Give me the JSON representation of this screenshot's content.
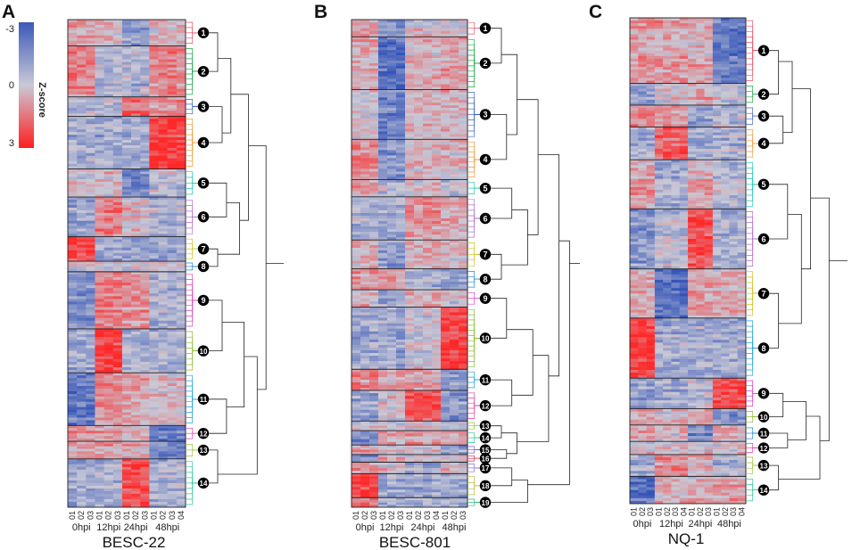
{
  "chart_data": {
    "type": "heatmap",
    "colorbar": {
      "label": "Z-score",
      "ticks": [
        "-3",
        "0",
        "3"
      ],
      "colors": [
        "#3a59b8",
        "#c9c9d6",
        "#ff1e1e"
      ]
    },
    "panels": [
      {
        "letter": "A",
        "title": "BESC-22",
        "timepoints": [
          {
            "label": "0hpi",
            "replicates": [
              "01",
              "02",
              "03"
            ]
          },
          {
            "label": "12hpi",
            "replicates": [
              "01",
              "02",
              "03"
            ]
          },
          {
            "label": "24hpi",
            "replicates": [
              "01",
              "02",
              "03"
            ]
          },
          {
            "label": "48hpi",
            "replicates": [
              "01",
              "02",
              "03",
              "04"
            ]
          }
        ],
        "clusters": [
          {
            "id": "1",
            "size": 30,
            "color": "#e8566a",
            "pattern": [
              0.3,
              0.1,
              -0.4,
              0.1
            ]
          },
          {
            "id": "2",
            "size": 58,
            "color": "#21a84a",
            "pattern": [
              0.4,
              -0.2,
              -0.2,
              0.4
            ]
          },
          {
            "id": "3",
            "size": 22,
            "color": "#3d63c9",
            "pattern": [
              -0.2,
              -0.1,
              0.6,
              0.4
            ]
          },
          {
            "id": "4",
            "size": 60,
            "color": "#f39a35",
            "pattern": [
              -0.3,
              -0.3,
              -0.3,
              0.9
            ]
          },
          {
            "id": "5",
            "size": 32,
            "color": "#1cc7b4",
            "pattern": [
              0.1,
              0.1,
              -0.6,
              -0.1
            ]
          },
          {
            "id": "6",
            "size": 45,
            "color": "#b06fd0",
            "pattern": [
              -0.3,
              0.5,
              0.1,
              -0.2
            ]
          },
          {
            "id": "7",
            "size": 28,
            "color": "#c9c21e",
            "pattern": [
              0.9,
              -0.3,
              -0.3,
              -0.3
            ]
          },
          {
            "id": "8",
            "size": 12,
            "color": "#1e8bd0",
            "pattern": [
              0.1,
              0.1,
              0.1,
              0.1
            ]
          },
          {
            "id": "9",
            "size": 65,
            "color": "#e040c0",
            "pattern": [
              -0.5,
              0.5,
              0.4,
              -0.2
            ]
          },
          {
            "id": "10",
            "size": 50,
            "color": "#8bbb35",
            "pattern": [
              -0.3,
              0.9,
              -0.2,
              -0.2
            ]
          },
          {
            "id": "11",
            "size": 60,
            "color": "#1ea5d6",
            "pattern": [
              -0.7,
              0.4,
              0.3,
              0.1
            ]
          },
          {
            "id": "12",
            "size": 18,
            "color": "#e23fa6",
            "pattern": [
              0.4,
              0.3,
              0.2,
              -0.6
            ]
          },
          {
            "id": "13",
            "size": 20,
            "color": "#9bc53a",
            "pattern": [
              0.3,
              0.3,
              0.2,
              -0.6
            ]
          },
          {
            "id": "14",
            "size": 55,
            "color": "#2ec99a",
            "pattern": [
              -0.3,
              -0.2,
              0.8,
              -0.2
            ]
          }
        ]
      },
      {
        "letter": "B",
        "title": "BESC-801",
        "timepoints": [
          {
            "label": "0hpi",
            "replicates": [
              "01",
              "02",
              "03"
            ]
          },
          {
            "label": "12hpi",
            "replicates": [
              "01",
              "02",
              "03"
            ]
          },
          {
            "label": "24hpi",
            "replicates": [
              "01",
              "02",
              "03",
              "04"
            ]
          },
          {
            "label": "48hpi",
            "replicates": [
              "01",
              "02",
              "03"
            ]
          }
        ],
        "clusters": [
          {
            "id": "1",
            "size": 18,
            "color": "#e8566a",
            "pattern": [
              0.3,
              -0.4,
              0.1,
              0.1
            ]
          },
          {
            "id": "2",
            "size": 55,
            "color": "#21a84a",
            "pattern": [
              0.2,
              -0.8,
              0.2,
              0.3
            ]
          },
          {
            "id": "3",
            "size": 52,
            "color": "#3d63c9",
            "pattern": [
              0.1,
              -0.6,
              0.2,
              0.2
            ]
          },
          {
            "id": "4",
            "size": 42,
            "color": "#f39a35",
            "pattern": [
              0.4,
              -0.5,
              0.1,
              0.1
            ]
          },
          {
            "id": "5",
            "size": 18,
            "color": "#1cc7b4",
            "pattern": [
              0.2,
              -0.2,
              0.1,
              -0.1
            ]
          },
          {
            "id": "6",
            "size": 45,
            "color": "#b06fd0",
            "pattern": [
              -0.2,
              -0.3,
              0.4,
              0.2
            ]
          },
          {
            "id": "7",
            "size": 30,
            "color": "#c9c21e",
            "pattern": [
              0.2,
              -0.4,
              0.2,
              0.1
            ]
          },
          {
            "id": "8",
            "size": 22,
            "color": "#1e8bd0",
            "pattern": [
              0.4,
              0.3,
              -0.2,
              -0.3
            ]
          },
          {
            "id": "9",
            "size": 18,
            "color": "#e040c0",
            "pattern": [
              0.2,
              -0.3,
              0.2,
              0.1
            ]
          },
          {
            "id": "10",
            "size": 65,
            "color": "#8bbb35",
            "pattern": [
              -0.3,
              -0.3,
              0.0,
              0.9
            ]
          },
          {
            "id": "11",
            "size": 22,
            "color": "#1ea5d6",
            "pattern": [
              0.4,
              0.2,
              0.2,
              -0.5
            ]
          },
          {
            "id": "12",
            "size": 32,
            "color": "#e23fa6",
            "pattern": [
              -0.3,
              0.1,
              0.8,
              -0.4
            ]
          },
          {
            "id": "13",
            "size": 10,
            "color": "#9bc53a",
            "pattern": [
              0.1,
              0.1,
              0.1,
              0.1
            ]
          },
          {
            "id": "14",
            "size": 15,
            "color": "#2ec99a",
            "pattern": [
              -0.6,
              0.2,
              0.3,
              0.2
            ]
          },
          {
            "id": "15",
            "size": 10,
            "color": "#7a5fd0",
            "pattern": [
              0.3,
              0.1,
              0.1,
              -0.4
            ]
          },
          {
            "id": "16",
            "size": 8,
            "color": "#d03050",
            "pattern": [
              -0.4,
              0.3,
              0.2,
              0.1
            ]
          },
          {
            "id": "17",
            "size": 12,
            "color": "#8b6fd0",
            "pattern": [
              0.3,
              0.1,
              -0.3,
              0.1
            ]
          },
          {
            "id": "18",
            "size": 25,
            "color": "#b8b835",
            "pattern": [
              0.9,
              -0.3,
              -0.3,
              -0.3
            ]
          },
          {
            "id": "19",
            "size": 10,
            "color": "#28b878",
            "pattern": [
              0.6,
              -0.2,
              -0.2,
              -0.2
            ]
          }
        ]
      },
      {
        "letter": "C",
        "title": "NQ-1",
        "timepoints": [
          {
            "label": "0hpi",
            "replicates": [
              "01",
              "02",
              "03"
            ]
          },
          {
            "label": "12hpi",
            "replicates": [
              "01",
              "02",
              "03",
              "04"
            ]
          },
          {
            "label": "24hpi",
            "replicates": [
              "01",
              "02",
              "03"
            ]
          },
          {
            "label": "48hpi",
            "replicates": [
              "01",
              "02",
              "03",
              "04"
            ]
          }
        ],
        "clusters": [
          {
            "id": "1",
            "size": 60,
            "color": "#e8566a",
            "pattern": [
              0.3,
              0.3,
              0.2,
              -0.7
            ]
          },
          {
            "id": "2",
            "size": 20,
            "color": "#21a84a",
            "pattern": [
              -0.3,
              0.1,
              0.3,
              0.0
            ]
          },
          {
            "id": "3",
            "size": 20,
            "color": "#3d63c9",
            "pattern": [
              0.4,
              0.3,
              -0.4,
              -0.2
            ]
          },
          {
            "id": "4",
            "size": 30,
            "color": "#f39a35",
            "pattern": [
              -0.2,
              0.7,
              -0.2,
              -0.2
            ]
          },
          {
            "id": "5",
            "size": 45,
            "color": "#1cc7b4",
            "pattern": [
              0.3,
              -0.3,
              0.2,
              -0.1
            ]
          },
          {
            "id": "6",
            "size": 55,
            "color": "#b06fd0",
            "pattern": [
              -0.4,
              -0.1,
              0.8,
              -0.2
            ]
          },
          {
            "id": "7",
            "size": 45,
            "color": "#c9c21e",
            "pattern": [
              0.2,
              -0.8,
              0.3,
              0.2
            ]
          },
          {
            "id": "8",
            "size": 55,
            "color": "#1ea5d6",
            "pattern": [
              0.9,
              -0.3,
              -0.3,
              -0.3
            ]
          },
          {
            "id": "9",
            "size": 28,
            "color": "#e040c0",
            "pattern": [
              -0.4,
              -0.3,
              -0.1,
              0.8
            ]
          },
          {
            "id": "10",
            "size": 15,
            "color": "#8bbb35",
            "pattern": [
              0.3,
              0.1,
              0.2,
              -0.5
            ]
          },
          {
            "id": "11",
            "size": 15,
            "color": "#1e8bd0",
            "pattern": [
              0.2,
              0.1,
              -0.6,
              0.2
            ]
          },
          {
            "id": "12",
            "size": 12,
            "color": "#e23fa6",
            "pattern": [
              0.1,
              0.1,
              0.1,
              0.1
            ]
          },
          {
            "id": "13",
            "size": 20,
            "color": "#9bc53a",
            "pattern": [
              -0.3,
              0.4,
              0.2,
              -0.2
            ]
          },
          {
            "id": "14",
            "size": 25,
            "color": "#2ec99a",
            "pattern": [
              -0.8,
              0.2,
              0.2,
              0.3
            ]
          }
        ]
      }
    ]
  }
}
